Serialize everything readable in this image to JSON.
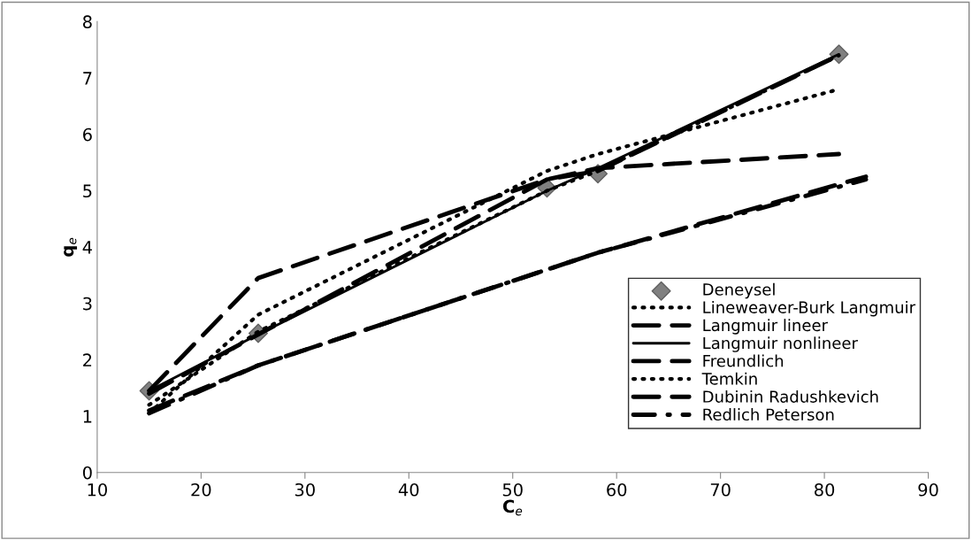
{
  "chart_data": {
    "type": "line",
    "xlabel": "C$_{e}$",
    "ylabel": "q$_{e}$",
    "xlim": [
      10,
      90
    ],
    "xticks": [
      10,
      20,
      30,
      40,
      50,
      60,
      70,
      80,
      90
    ],
    "ylim": [
      0,
      8
    ],
    "yticks": [
      0,
      1,
      2,
      3,
      4,
      5,
      6,
      7,
      8
    ],
    "grid": false,
    "legend": "bottom right",
    "series": [
      {
        "name": "Deneysel",
        "type": "scatter",
        "marker": "diamond",
        "color": "#808080",
        "x": [
          15,
          25.5,
          53.3,
          58.2,
          81.4
        ],
        "values": [
          1.45,
          2.47,
          5.05,
          5.3,
          7.42
        ]
      },
      {
        "name": "Lineweaver-Burk Langmuir",
        "line_style": "dotted",
        "color": "#000000",
        "x": [
          15,
          25.5,
          53.3,
          58.2,
          81.4
        ],
        "values": [
          1.05,
          2.8,
          5.35,
          5.65,
          6.8
        ]
      },
      {
        "name": "Langmuir lineer",
        "line_style": "dashed",
        "color": "#000000",
        "x": [
          15,
          25.5,
          53.3,
          58.2,
          81.4
        ],
        "values": [
          1.45,
          3.45,
          5.2,
          5.4,
          5.65
        ]
      },
      {
        "name": "Langmuir nonlineer",
        "line_style": "solid",
        "color": "#000000",
        "x": [
          15,
          25.5,
          53.3,
          58.2,
          81.4
        ],
        "values": [
          1.45,
          2.45,
          5.0,
          5.4,
          7.42
        ]
      },
      {
        "name": "Freundlich",
        "line_style": "dashed",
        "color": "#000000",
        "x": [
          15,
          25.5,
          53.3,
          58.2,
          84
        ],
        "values": [
          1.1,
          1.9,
          3.6,
          3.9,
          5.25
        ]
      },
      {
        "name": "Temkin",
        "line_style": "dotted",
        "color": "#000000",
        "x": [
          15,
          25.5,
          53.3,
          58.2,
          81.4
        ],
        "values": [
          1.2,
          2.5,
          5.0,
          5.35,
          7.4
        ]
      },
      {
        "name": "Dubinin Radushkevich",
        "line_style": "dashed",
        "color": "#000000",
        "x": [
          15,
          25.5,
          53.3,
          58.2,
          81.4
        ],
        "values": [
          1.4,
          2.45,
          5.2,
          5.35,
          7.4
        ]
      },
      {
        "name": "Redlich Peterson",
        "line_style": "dashdot",
        "color": "#000000",
        "x": [
          15,
          25.5,
          53.3,
          58.2,
          84
        ],
        "values": [
          1.05,
          1.9,
          3.6,
          3.9,
          5.2
        ]
      }
    ]
  }
}
